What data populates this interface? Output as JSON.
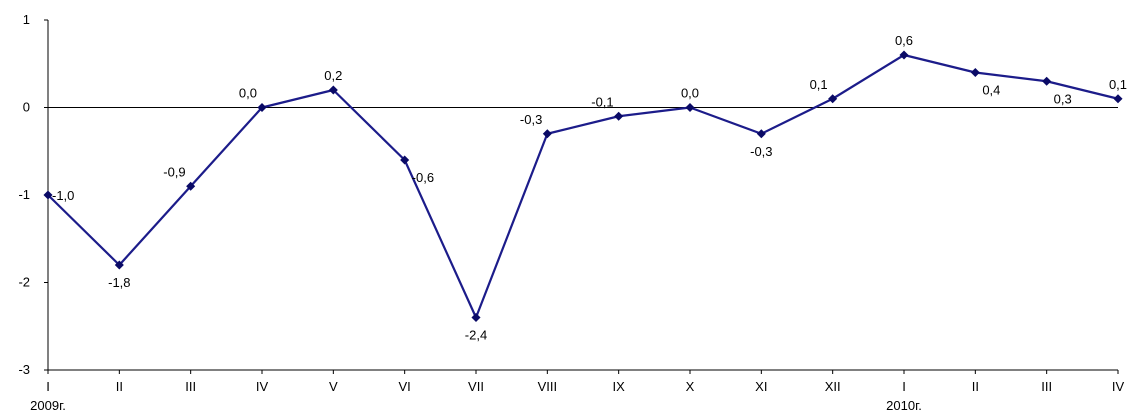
{
  "chart_data": {
    "type": "line",
    "title": "",
    "xlabel": "",
    "ylabel": "",
    "ylim": [
      -3,
      1
    ],
    "yticks": [
      1,
      0,
      -1,
      -2,
      -3
    ],
    "grid": false,
    "legend": "none",
    "colors": {
      "line": "#1c1c8a",
      "marker": "#0a0a66",
      "axis": "#000000"
    },
    "categories": [
      "I",
      "II",
      "III",
      "IV",
      "V",
      "VI",
      "VII",
      "VIII",
      "IX",
      "X",
      "XI",
      "XII",
      "I",
      "II",
      "III",
      "IV"
    ],
    "year_labels": [
      {
        "text": "2009г.",
        "index": 0
      },
      {
        "text": "2010г.",
        "index": 12
      }
    ],
    "series": [
      {
        "values": [
          -1.0,
          -1.8,
          -0.9,
          0.0,
          0.2,
          -0.6,
          -2.4,
          -0.3,
          -0.1,
          0.0,
          -0.3,
          0.1,
          0.6,
          0.4,
          0.3,
          0.1
        ],
        "labels": [
          "-1,0",
          "-1,8",
          "-0,9",
          "0,0",
          "0,2",
          "-0,6",
          "-2,4",
          "-0,3",
          "-0,1",
          "0,0",
          "-0,3",
          "0,1",
          "0,6",
          "0,4",
          "0,3",
          "0,1"
        ]
      }
    ]
  }
}
